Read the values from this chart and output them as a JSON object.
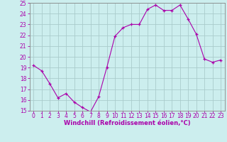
{
  "x": [
    0,
    1,
    2,
    3,
    4,
    5,
    6,
    7,
    8,
    9,
    10,
    11,
    12,
    13,
    14,
    15,
    16,
    17,
    18,
    19,
    20,
    21,
    22,
    23
  ],
  "y": [
    19.2,
    18.7,
    17.5,
    16.2,
    16.6,
    15.8,
    15.3,
    14.9,
    16.3,
    19.0,
    21.9,
    22.7,
    23.0,
    23.0,
    24.4,
    24.8,
    24.3,
    24.3,
    24.8,
    23.5,
    22.1,
    19.8,
    19.5,
    19.7
  ],
  "line_color": "#aa00aa",
  "marker": "+",
  "bg_color": "#cceeee",
  "grid_color": "#aacccc",
  "xlabel": "Windchill (Refroidissement éolien,°C)",
  "xlabel_color": "#aa00aa",
  "tick_color": "#aa00aa",
  "ylim": [
    15,
    25
  ],
  "xlim": [
    -0.5,
    23.5
  ],
  "yticks": [
    15,
    16,
    17,
    18,
    19,
    20,
    21,
    22,
    23,
    24,
    25
  ],
  "xticks": [
    0,
    1,
    2,
    3,
    4,
    5,
    6,
    7,
    8,
    9,
    10,
    11,
    12,
    13,
    14,
    15,
    16,
    17,
    18,
    19,
    20,
    21,
    22,
    23
  ],
  "axis_color": "#888888",
  "tick_fontsize": 5.5,
  "xlabel_fontsize": 6.0
}
